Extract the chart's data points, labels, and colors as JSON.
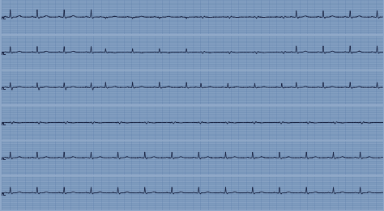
{
  "background_color": "#8fa8c8",
  "grid_major_color": "#6888b0",
  "grid_minor_color": "#7898bc",
  "ecg_line_color": "#151e3d",
  "row_sep_color": "#c0d0e0",
  "fig_width": 4.74,
  "fig_height": 2.61,
  "dpi": 100,
  "n_rows": 6
}
